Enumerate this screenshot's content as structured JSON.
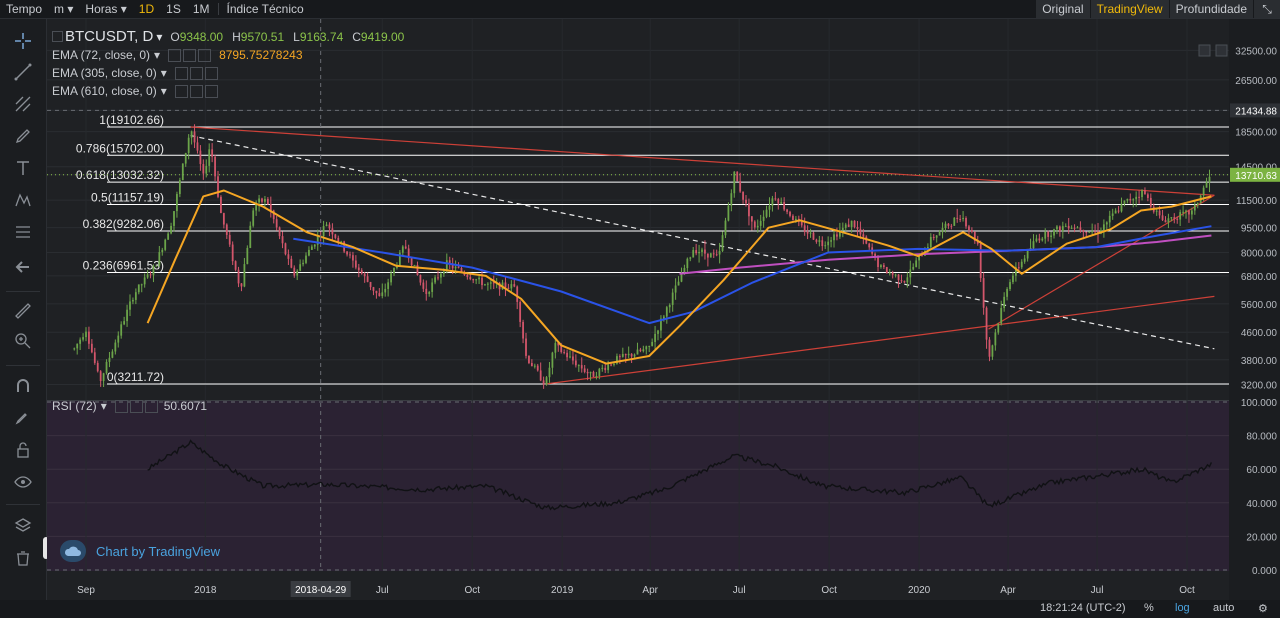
{
  "topbar": {
    "tempo": "Tempo",
    "interval_m": "m",
    "interval_horas": "Horas",
    "intervals": [
      "1D",
      "1S",
      "1M"
    ],
    "active_interval": "1D",
    "indicator": "Índice Técnico",
    "views": [
      "Original",
      "TradingView",
      "Profundidade"
    ],
    "active_view": "TradingView"
  },
  "legend": {
    "symbol": "BTCUSDT, D",
    "ohlc": [
      {
        "label": "O",
        "value": "9348.00"
      },
      {
        "label": "H",
        "value": "9570.51"
      },
      {
        "label": "L",
        "value": "9163.74"
      },
      {
        "label": "C",
        "value": "9419.00"
      }
    ],
    "ema72": {
      "label": "EMA (72, close, 0)",
      "value": "8795.75278243"
    },
    "ema305": {
      "label": "EMA (305, close, 0)"
    },
    "ema610": {
      "label": "EMA (610, close, 0)"
    },
    "rsi": {
      "label": "RSI (72)",
      "value": "50.6071"
    }
  },
  "watermark": "Chart by TradingView",
  "bottombar": {
    "time": "18:21:24 (UTC-2)",
    "percent": "%",
    "log": "log",
    "auto": "auto"
  },
  "colors": {
    "up": "#6ca54a",
    "down": "#d3566b",
    "ema72": "#f5a623",
    "ema305": "#2a53e8",
    "ema610": "#c04fc0",
    "trend": "#e0443a",
    "fib": "#ffffff",
    "rsi_bg": "#2b2233",
    "last_price_bg": "#7cb342",
    "accent": "#f0b90b"
  },
  "chart_data": [
    {
      "type": "line",
      "title": "BTCUSDT, D",
      "y_scale": "log",
      "y_ticks": [
        32500,
        26500,
        21434.88,
        18500,
        14500,
        13710.63,
        11500,
        9500,
        8000,
        6800,
        5600,
        4600,
        3800,
        3200
      ],
      "y_tick_labels": [
        "32500.00",
        "26500.00",
        "21434.88",
        "18500.00",
        "14500.00",
        "13710.63",
        "11500.00",
        "9500.00",
        "8000.00",
        "6800.00",
        "5600.00",
        "4600.00",
        "3800.00",
        "3200.00"
      ],
      "last_price": "13710.63",
      "x_tick_labels": [
        "Sep",
        "2018",
        "Jul",
        "Oct",
        "2019",
        "Apr",
        "Jul",
        "Oct",
        "2020",
        "Apr",
        "Jul",
        "Oct"
      ],
      "crosshair_date": "2018-04-29",
      "fib_levels": [
        {
          "label": "1(19102.66)",
          "value": 19102.66
        },
        {
          "label": "0.786(15702.00)",
          "value": 15702.0
        },
        {
          "label": "0.618(13032.32)",
          "value": 13032.32
        },
        {
          "label": "0.5(11157.19)",
          "value": 11157.19
        },
        {
          "label": "0.382(9282.06)",
          "value": 9282.06
        },
        {
          "label": "0.236(6961.53)",
          "value": 6961.53
        },
        {
          "label": "0(3211.72)",
          "value": 3211.72
        }
      ],
      "price_path": [
        [
          "2017-08-20",
          4100
        ],
        [
          "2017-09-01",
          4700
        ],
        [
          "2017-09-15",
          3250
        ],
        [
          "2017-10-01",
          4300
        ],
        [
          "2017-10-20",
          6000
        ],
        [
          "2017-11-10",
          7200
        ],
        [
          "2017-11-28",
          10000
        ],
        [
          "2017-12-17",
          19100
        ],
        [
          "2017-12-30",
          13500
        ],
        [
          "2018-01-06",
          17000
        ],
        [
          "2018-01-17",
          10500
        ],
        [
          "2018-02-06",
          6200
        ],
        [
          "2018-02-20",
          11300
        ],
        [
          "2018-03-05",
          11500
        ],
        [
          "2018-04-01",
          6800
        ],
        [
          "2018-05-05",
          9800
        ],
        [
          "2018-06-01",
          7500
        ],
        [
          "2018-06-29",
          5800
        ],
        [
          "2018-07-24",
          8400
        ],
        [
          "2018-08-14",
          6000
        ],
        [
          "2018-09-05",
          7400
        ],
        [
          "2018-10-15",
          6400
        ],
        [
          "2018-11-14",
          6300
        ],
        [
          "2018-11-25",
          3900
        ],
        [
          "2018-12-15",
          3200
        ],
        [
          "2018-12-24",
          4200
        ],
        [
          "2019-01-31",
          3400
        ],
        [
          "2019-02-25",
          3800
        ],
        [
          "2019-03-30",
          4100
        ],
        [
          "2019-04-15",
          5200
        ],
        [
          "2019-05-15",
          8200
        ],
        [
          "2019-06-10",
          7700
        ],
        [
          "2019-06-26",
          13800
        ],
        [
          "2019-07-17",
          9400
        ],
        [
          "2019-08-06",
          11900
        ],
        [
          "2019-09-01",
          9600
        ],
        [
          "2019-09-24",
          8500
        ],
        [
          "2019-10-25",
          9900
        ],
        [
          "2019-11-22",
          7200
        ],
        [
          "2019-12-17",
          6600
        ],
        [
          "2020-01-15",
          8900
        ],
        [
          "2020-02-13",
          10400
        ],
        [
          "2020-03-01",
          8500
        ],
        [
          "2020-03-12",
          3800
        ],
        [
          "2020-04-01",
          6500
        ],
        [
          "2020-04-30",
          8800
        ],
        [
          "2020-06-01",
          9700
        ],
        [
          "2020-07-01",
          9200
        ],
        [
          "2020-07-29",
          11300
        ],
        [
          "2020-08-17",
          12200
        ],
        [
          "2020-09-05",
          10000
        ],
        [
          "2020-10-07",
          10600
        ],
        [
          "2020-10-21",
          13000
        ],
        [
          "2020-10-26",
          13710.63
        ]
      ],
      "ema72": [
        [
          "2017-11-03",
          4900
        ],
        [
          "2017-12-01",
          7600
        ],
        [
          "2017-12-30",
          11800
        ],
        [
          "2018-01-20",
          12300
        ],
        [
          "2018-03-01",
          11000
        ],
        [
          "2018-04-15",
          9200
        ],
        [
          "2018-06-01",
          8300
        ],
        [
          "2018-07-15",
          7300
        ],
        [
          "2018-09-01",
          7100
        ],
        [
          "2018-10-15",
          6800
        ],
        [
          "2018-11-20",
          5800
        ],
        [
          "2018-12-31",
          4200
        ],
        [
          "2019-02-15",
          3700
        ],
        [
          "2019-03-31",
          3900
        ],
        [
          "2019-05-01",
          4800
        ],
        [
          "2019-06-15",
          6600
        ],
        [
          "2019-07-31",
          9500
        ],
        [
          "2019-09-01",
          10000
        ],
        [
          "2019-10-15",
          9200
        ],
        [
          "2019-11-30",
          8400
        ],
        [
          "2019-12-31",
          7800
        ],
        [
          "2020-02-15",
          9200
        ],
        [
          "2020-03-15",
          8200
        ],
        [
          "2020-04-15",
          6900
        ],
        [
          "2020-05-31",
          8500
        ],
        [
          "2020-07-15",
          9400
        ],
        [
          "2020-08-15",
          10700
        ],
        [
          "2020-09-15",
          11000
        ],
        [
          "2020-10-26",
          11800
        ]
      ],
      "ema305": [
        [
          "2018-04-01",
          8800
        ],
        [
          "2018-07-01",
          8000
        ],
        [
          "2018-10-01",
          7200
        ],
        [
          "2018-12-31",
          6100
        ],
        [
          "2019-03-31",
          4900
        ],
        [
          "2019-05-15",
          5300
        ],
        [
          "2019-07-15",
          6500
        ],
        [
          "2019-09-30",
          8000
        ],
        [
          "2019-12-31",
          8200
        ],
        [
          "2020-03-31",
          8100
        ],
        [
          "2020-06-30",
          8300
        ],
        [
          "2020-09-01",
          9000
        ],
        [
          "2020-10-26",
          9600
        ]
      ],
      "ema610": [
        [
          "2019-05-01",
          6900
        ],
        [
          "2019-07-01",
          7200
        ],
        [
          "2019-09-30",
          7600
        ],
        [
          "2019-12-31",
          7900
        ],
        [
          "2020-03-31",
          8100
        ],
        [
          "2020-06-30",
          8300
        ],
        [
          "2020-08-31",
          8600
        ],
        [
          "2020-10-26",
          9000
        ]
      ],
      "trendlines": [
        {
          "style": "solid",
          "color": "trend",
          "from": [
            "2017-12-17",
            19100
          ],
          "to": [
            "2020-10-29",
            11900
          ]
        },
        {
          "style": "solid",
          "color": "trend",
          "from": [
            "2018-12-15",
            3211.72
          ],
          "to": [
            "2020-10-29",
            5900
          ]
        },
        {
          "style": "solid",
          "color": "trend",
          "from": [
            "2020-03-12",
            4700
          ],
          "to": [
            "2020-10-29",
            11900
          ]
        },
        {
          "style": "dashed",
          "color": "fib",
          "from": [
            "2017-12-17",
            18000
          ],
          "to": [
            "2020-10-29",
            4100
          ]
        }
      ]
    },
    {
      "type": "line",
      "title": "RSI (72)",
      "y_ticks": [
        0,
        20,
        40,
        60,
        80,
        100
      ],
      "y_tick_labels": [
        "0.000",
        "20.000",
        "40.000",
        "60.000",
        "80.000",
        "100.000"
      ],
      "ylim": [
        0,
        100
      ],
      "values": [
        [
          "2017-11-03",
          60
        ],
        [
          "2017-12-17",
          76
        ],
        [
          "2018-01-20",
          62
        ],
        [
          "2018-03-01",
          50
        ],
        [
          "2018-05-05",
          51
        ],
        [
          "2018-08-14",
          48
        ],
        [
          "2018-10-15",
          50
        ],
        [
          "2018-12-15",
          37
        ],
        [
          "2019-02-25",
          40
        ],
        [
          "2019-04-15",
          48
        ],
        [
          "2019-06-26",
          68
        ],
        [
          "2019-08-06",
          62
        ],
        [
          "2019-09-24",
          50
        ],
        [
          "2019-12-17",
          46
        ],
        [
          "2020-02-13",
          55
        ],
        [
          "2020-03-12",
          38
        ],
        [
          "2020-05-15",
          52
        ],
        [
          "2020-08-17",
          60
        ],
        [
          "2020-09-15",
          52
        ],
        [
          "2020-10-26",
          63
        ]
      ]
    }
  ]
}
